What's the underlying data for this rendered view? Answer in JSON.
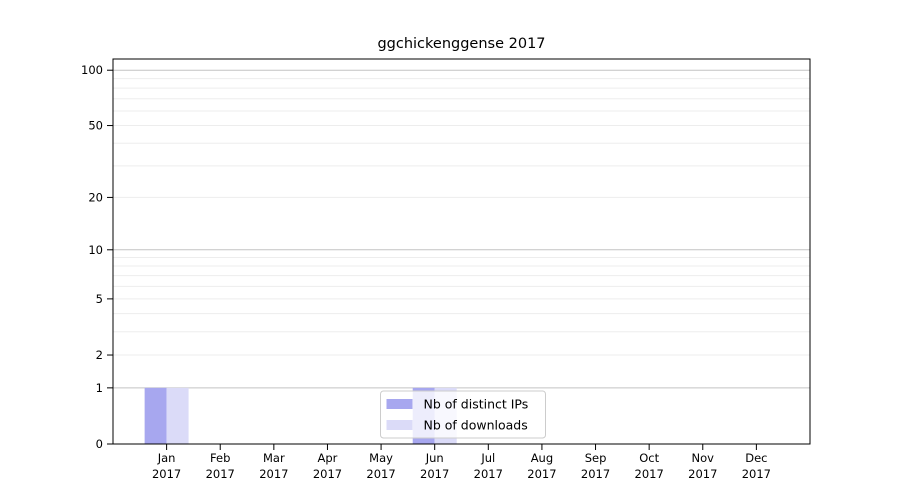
{
  "chart_data": {
    "type": "bar",
    "title": "ggchickenggense 2017",
    "categories": [
      {
        "month": "Jan",
        "year": "2017"
      },
      {
        "month": "Feb",
        "year": "2017"
      },
      {
        "month": "Mar",
        "year": "2017"
      },
      {
        "month": "Apr",
        "year": "2017"
      },
      {
        "month": "May",
        "year": "2017"
      },
      {
        "month": "Jun",
        "year": "2017"
      },
      {
        "month": "Jul",
        "year": "2017"
      },
      {
        "month": "Aug",
        "year": "2017"
      },
      {
        "month": "Sep",
        "year": "2017"
      },
      {
        "month": "Oct",
        "year": "2017"
      },
      {
        "month": "Nov",
        "year": "2017"
      },
      {
        "month": "Dec",
        "year": "2017"
      }
    ],
    "series": [
      {
        "name": "Nb of distinct IPs",
        "color": "#a7a7ef",
        "values": [
          1,
          0,
          0,
          0,
          0,
          1,
          0,
          0,
          0,
          0,
          0,
          0
        ]
      },
      {
        "name": "Nb of downloads",
        "color": "#dbdbf8",
        "values": [
          1,
          0,
          0,
          0,
          0,
          1,
          0,
          0,
          0,
          0,
          0,
          0
        ]
      }
    ],
    "y_axis": {
      "scale": "log1p",
      "ticks": [
        0,
        1,
        2,
        5,
        10,
        20,
        50,
        100
      ],
      "max": 115,
      "grid_major": [
        1,
        10,
        100
      ],
      "grid_minor": [
        2,
        3,
        4,
        5,
        6,
        7,
        8,
        9,
        20,
        30,
        40,
        50,
        60,
        70,
        80,
        90
      ]
    },
    "xlabel": "",
    "ylabel": "",
    "legend": {
      "position": "lower center",
      "frame_alpha": 0.8
    },
    "grid": "on",
    "colors": {
      "grid_major": "#c3c3c3",
      "grid_minor": "#ededed",
      "spine": "#000000",
      "text": "#000000",
      "legend_border": "#cccccc",
      "legend_bg": "#ffffff"
    }
  }
}
